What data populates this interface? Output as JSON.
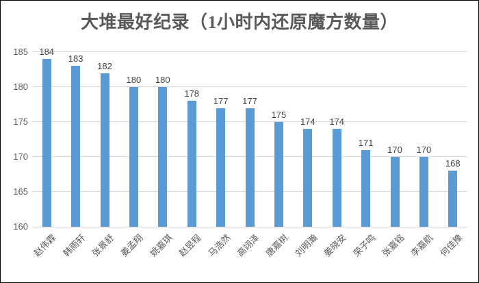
{
  "chart_data": {
    "type": "bar",
    "title": "大堆最好纪录（1小时内还原魔方数量）",
    "categories": [
      "赵伟霖",
      "韩雨轩",
      "张景舒",
      "姜孟翔",
      "姚嘉琪",
      "赵昱程",
      "马浩然",
      "高翊泽",
      "唐嘉树",
      "刘明瀚",
      "姜晓安",
      "荣子鸣",
      "张嘉铭",
      "李嘉航",
      "何佳豫"
    ],
    "values": [
      184,
      183,
      182,
      180,
      180,
      178,
      177,
      177,
      175,
      174,
      174,
      171,
      170,
      170,
      168
    ],
    "data_labels": [
      184,
      183,
      182,
      180,
      180,
      178,
      177,
      177,
      175,
      174,
      174,
      171,
      170,
      170,
      168
    ],
    "xlabel": "",
    "ylabel": "",
    "ylim": [
      160,
      185
    ],
    "yticks": [
      160,
      165,
      170,
      175,
      180,
      185
    ],
    "grid": true,
    "legend_position": "none",
    "bar_color": "#5B9BD5",
    "gridline_color": "#d9d9d9",
    "title_color": "#595959",
    "axis_label_color": "#595959",
    "data_label_color": "#404040"
  }
}
